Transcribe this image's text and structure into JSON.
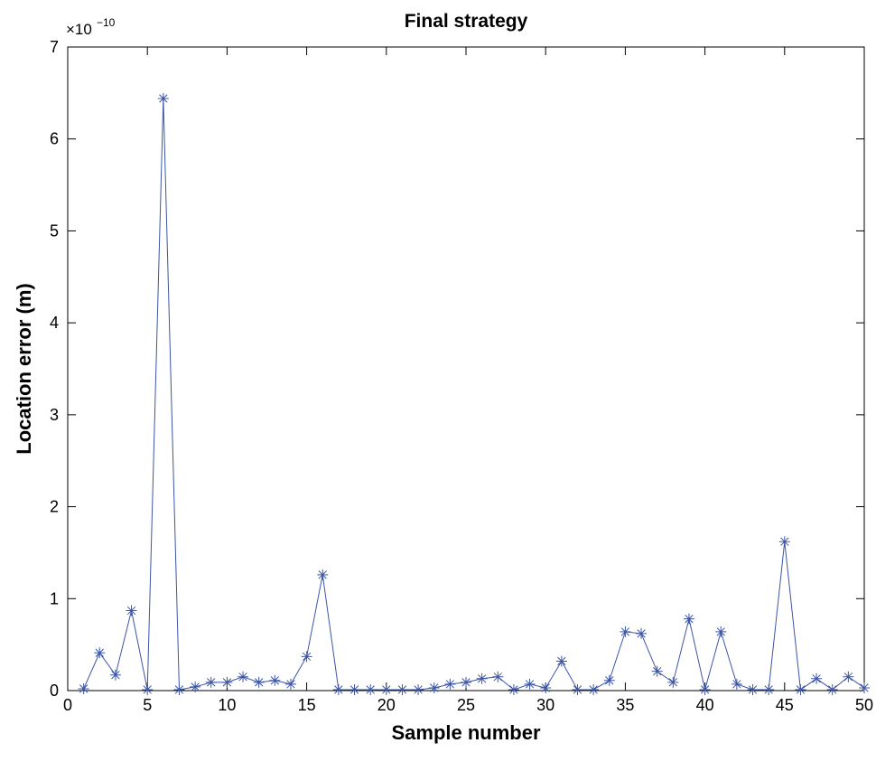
{
  "chart_data": {
    "type": "line",
    "title": "Final strategy",
    "x_label": "Sample number",
    "y_label": "Location error (m)",
    "y_multiplier_base": "×10",
    "y_multiplier_exponent": "−10",
    "marker": "star",
    "color": "#3b55a5",
    "x": [
      1,
      2,
      3,
      4,
      5,
      6,
      7,
      8,
      9,
      10,
      11,
      12,
      13,
      14,
      15,
      16,
      17,
      18,
      19,
      20,
      21,
      22,
      23,
      24,
      25,
      26,
      27,
      28,
      29,
      30,
      31,
      32,
      33,
      34,
      35,
      36,
      37,
      38,
      39,
      40,
      41,
      42,
      43,
      44,
      45,
      46,
      47,
      48,
      49,
      50
    ],
    "values": [
      0.02,
      0.41,
      0.17,
      0.87,
      0.01,
      6.44,
      0.01,
      0.04,
      0.09,
      0.09,
      0.15,
      0.09,
      0.11,
      0.07,
      0.37,
      1.26,
      0.01,
      0.01,
      0.01,
      0.01,
      0.01,
      0.01,
      0.03,
      0.07,
      0.09,
      0.13,
      0.15,
      0.01,
      0.07,
      0.03,
      0.32,
      0.01,
      0.01,
      0.11,
      0.64,
      0.62,
      0.21,
      0.09,
      0.78,
      0.01,
      0.64,
      0.07,
      0.01,
      0.01,
      1.62,
      0.01,
      0.13,
      0.01,
      0.15,
      0.03
    ],
    "xlim": [
      0,
      50
    ],
    "ylim": [
      0,
      7
    ],
    "xticks": [
      0,
      5,
      10,
      15,
      20,
      25,
      30,
      35,
      40,
      45,
      50
    ],
    "yticks": [
      0,
      1,
      2,
      3,
      4,
      5,
      6,
      7
    ]
  }
}
